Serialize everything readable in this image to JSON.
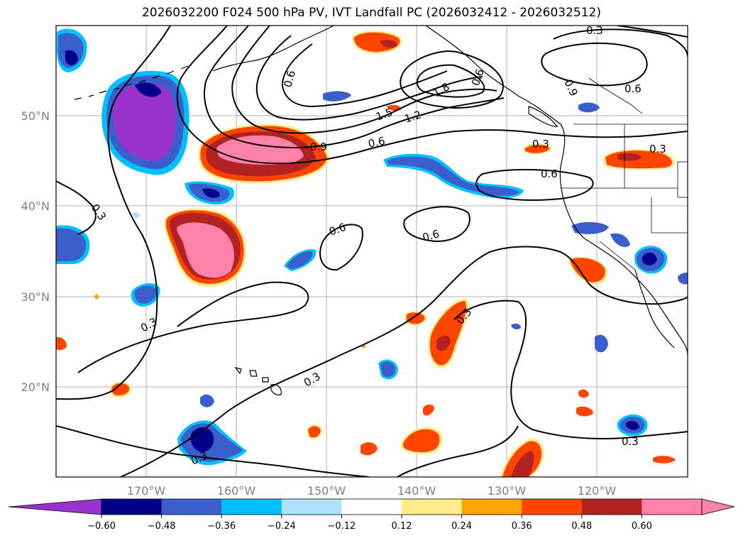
{
  "title": "2026032200 F024 500 hPa PV, IVT Landfall PC (2026032412 - 2026032512)",
  "map": {
    "lon_labels": [
      "170°W",
      "160°W",
      "150°W",
      "140°W",
      "130°W",
      "120°W"
    ],
    "lat_labels": [
      "50°N",
      "40°N",
      "30°N",
      "20°N"
    ],
    "contour_labels": [
      "0.3",
      "0.6",
      "0.6",
      "1.8",
      "1.5",
      "1.2",
      "0.9",
      "0.6",
      "0.9",
      "0.6",
      "0.3",
      "0.6",
      "0.3",
      "0.3",
      "0.6",
      "0.6",
      "0.3",
      "0.3",
      "0.3",
      "0.3",
      "0.3"
    ]
  },
  "colorbar": {
    "ticks": [
      "−0.60",
      "−0.48",
      "−0.36",
      "−0.24",
      "−0.12",
      "0.12",
      "0.24",
      "0.36",
      "0.48",
      "0.60"
    ],
    "colors": [
      "#9a32cd",
      "#00008b",
      "#3a5fcd",
      "#00bfff",
      "#b0e2ff",
      "#ffffff",
      "#ffec8b",
      "#ffa500",
      "#ff4500",
      "#b22222",
      "#ff82ab",
      "#ff82ab"
    ]
  },
  "legend": {
    "negative_fill": "#9a32cd",
    "positive_fill": "#ff82ab"
  }
}
